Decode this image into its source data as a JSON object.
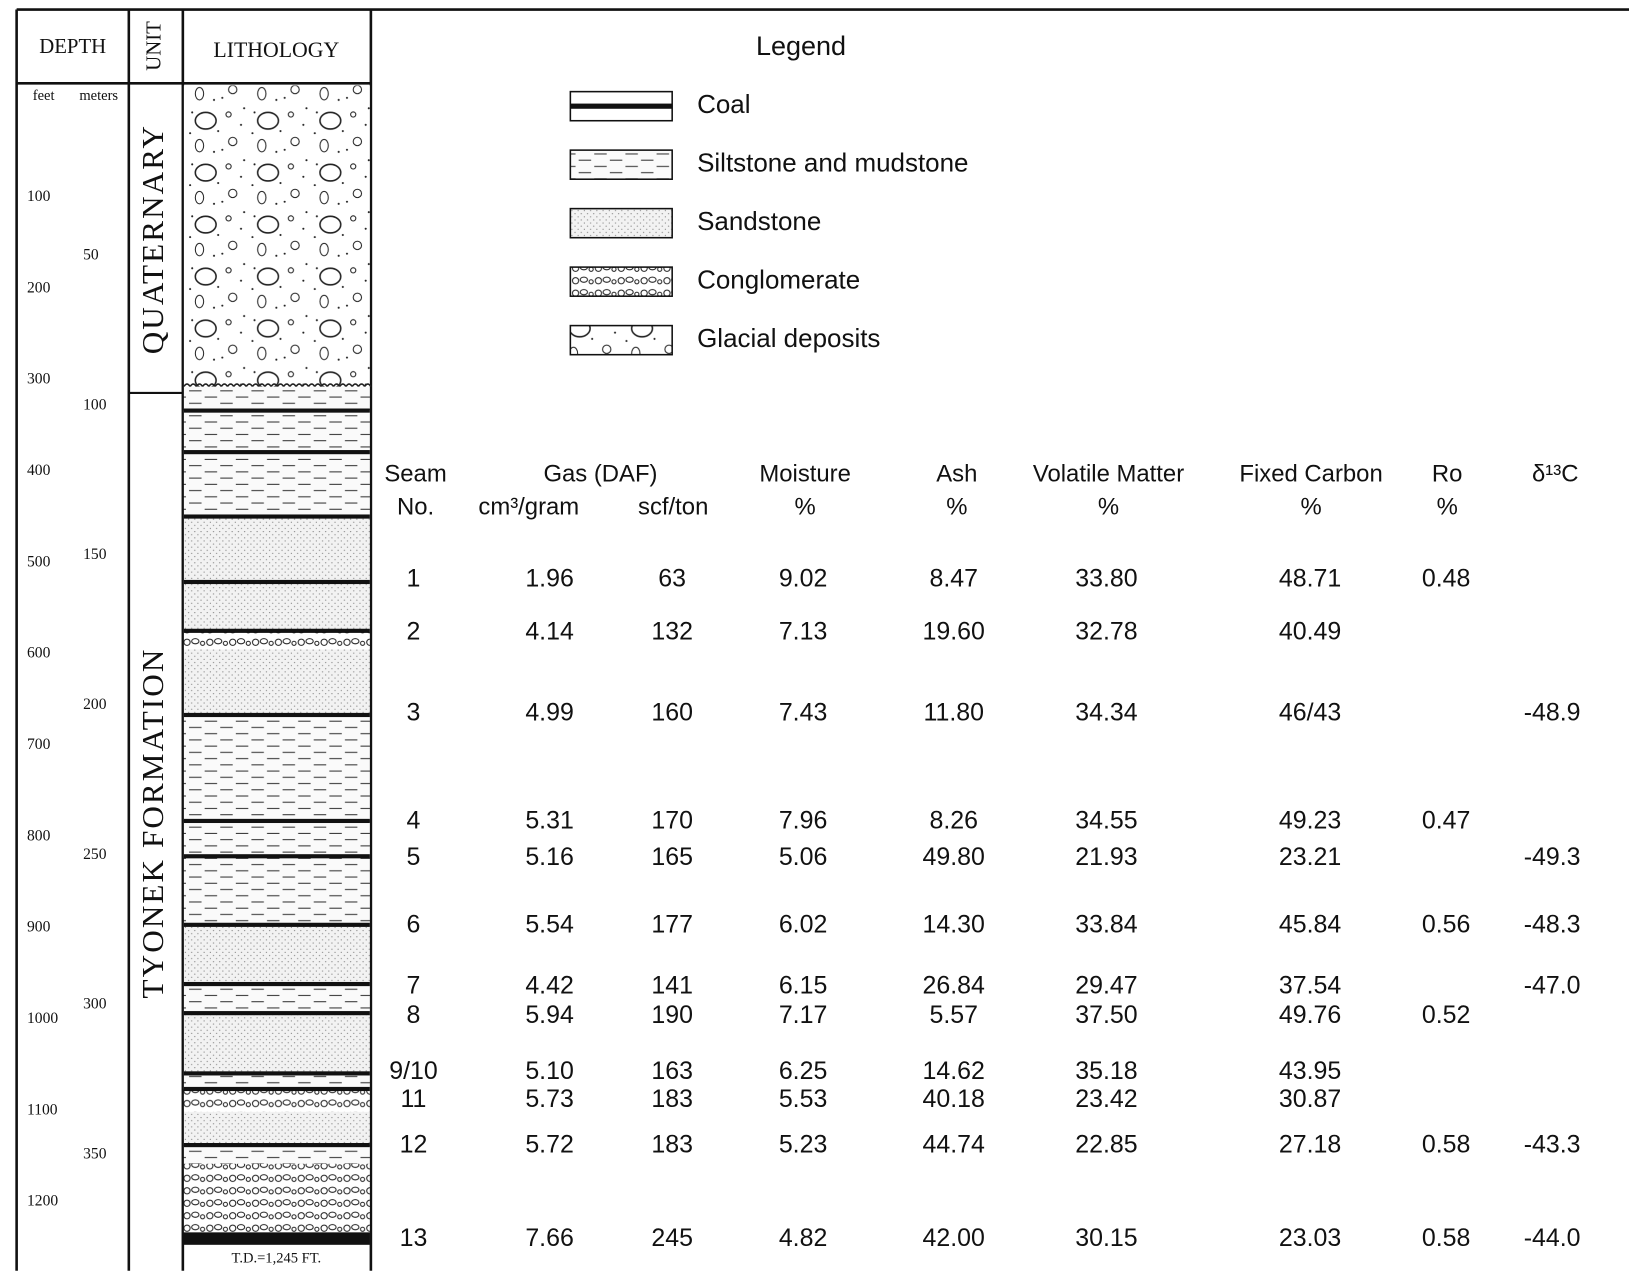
{
  "column_headers": {
    "depth": "DEPTH",
    "unit": "UNIT",
    "lithology": "LITHOLOGY",
    "feet": "feet",
    "meters": "meters"
  },
  "depth_feet": [
    100,
    200,
    300,
    400,
    500,
    600,
    700,
    800,
    900,
    1000,
    1100,
    1200
  ],
  "depth_meters": [
    50,
    100,
    150,
    200,
    250,
    300,
    350
  ],
  "units": [
    "QUATERNARY",
    "TYONEK FORMATION"
  ],
  "td_label": "T.D.=1,245 FT.",
  "legend": {
    "title": "Legend",
    "items": [
      "Coal",
      "Siltstone and mudstone",
      "Sandstone",
      "Conglomerate",
      "Glacial deposits"
    ]
  },
  "table": {
    "header_top": [
      "Seam",
      "Gas (DAF)",
      "Moisture",
      "Ash",
      "Volatile Matter",
      "Fixed Carbon",
      "Ro",
      "δ¹³C"
    ],
    "header_bottom": [
      "No.",
      "cm³/gram",
      "scf/ton",
      "%",
      "%",
      "%",
      "%",
      "%"
    ],
    "rows": [
      [
        "1",
        "1.96",
        "63",
        "9.02",
        "8.47",
        "33.80",
        "48.71",
        "0.48",
        null
      ],
      [
        "2",
        "4.14",
        "132",
        "7.13",
        "19.60",
        "32.78",
        "40.49",
        null,
        null
      ],
      [
        "3",
        "4.99",
        "160",
        "7.43",
        "11.80",
        "34.34",
        "46/43",
        null,
        "-48.9"
      ],
      [
        "4",
        "5.31",
        "170",
        "7.96",
        "8.26",
        "34.55",
        "49.23",
        "0.47",
        null
      ],
      [
        "5",
        "5.16",
        "165",
        "5.06",
        "49.80",
        "21.93",
        "23.21",
        null,
        "-49.3"
      ],
      [
        "6",
        "5.54",
        "177",
        "6.02",
        "14.30",
        "33.84",
        "45.84",
        "0.56",
        "-48.3"
      ],
      [
        "7",
        "4.42",
        "141",
        "6.15",
        "26.84",
        "29.47",
        "37.54",
        null,
        "-47.0"
      ],
      [
        "8",
        "5.94",
        "190",
        "7.17",
        "5.57",
        "37.50",
        "49.76",
        "0.52",
        null
      ],
      [
        "9/10",
        "5.10",
        "163",
        "6.25",
        "14.62",
        "35.18",
        "43.95",
        null,
        null
      ],
      [
        "11",
        "5.73",
        "183",
        "5.53",
        "40.18",
        "23.42",
        "30.87",
        null,
        null
      ],
      [
        "12",
        "5.72",
        "183",
        "5.23",
        "44.74",
        "22.85",
        "27.18",
        "0.58",
        "-43.3"
      ],
      [
        "13",
        "7.66",
        "245",
        "4.82",
        "42.00",
        "30.15",
        "23.03",
        "0.58",
        "-44.0"
      ]
    ]
  }
}
